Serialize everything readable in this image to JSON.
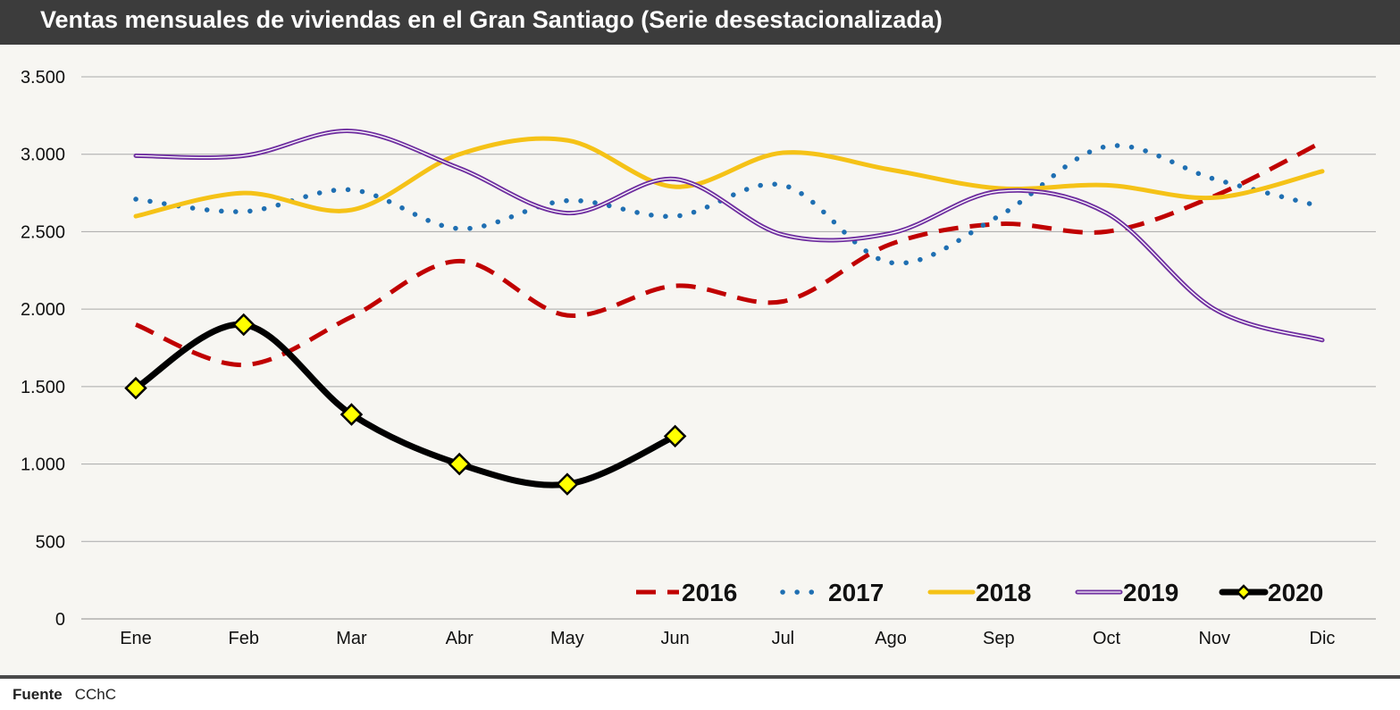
{
  "title": "Ventas mensuales de viviendas en el Gran Santiago (Serie desestacionalizada)",
  "footer": {
    "label": "Fuente",
    "source": "CChC"
  },
  "chart_data": {
    "type": "line",
    "title": "Ventas mensuales de viviendas en el Gran Santiago (Serie desestacionalizada)",
    "xlabel": "",
    "ylabel": "",
    "categories": [
      "Ene",
      "Feb",
      "Mar",
      "Abr",
      "May",
      "Jun",
      "Jul",
      "Ago",
      "Sep",
      "Oct",
      "Nov",
      "Dic"
    ],
    "ylim": [
      0,
      3500
    ],
    "yticks": [
      0,
      500,
      1000,
      1500,
      2000,
      2500,
      3000,
      3500
    ],
    "ytick_labels": [
      "0",
      "500",
      "1.000",
      "1.500",
      "2.000",
      "2.500",
      "3.000",
      "3.500"
    ],
    "grid": true,
    "legend_position": "bottom-right",
    "series": [
      {
        "name": "2016",
        "style": "dashed",
        "color": "#c00000",
        "values": [
          1900,
          1640,
          1950,
          2310,
          1960,
          2150,
          2050,
          2420,
          2550,
          2500,
          2730,
          3080
        ]
      },
      {
        "name": "2017",
        "style": "dotted",
        "color": "#1f6fb2",
        "values": [
          2710,
          2630,
          2770,
          2520,
          2700,
          2600,
          2800,
          2300,
          2600,
          3050,
          2840,
          2660
        ]
      },
      {
        "name": "2018",
        "style": "solid",
        "color": "#f5c217",
        "values": [
          2600,
          2750,
          2640,
          3000,
          3090,
          2790,
          3010,
          2900,
          2780,
          2800,
          2720,
          2890
        ]
      },
      {
        "name": "2019",
        "style": "double",
        "color": "#7030a0",
        "values": [
          2990,
          2990,
          3150,
          2910,
          2620,
          2840,
          2480,
          2490,
          2760,
          2620,
          2000,
          1800
        ]
      },
      {
        "name": "2020",
        "style": "thick-markers",
        "color": "#000000",
        "marker_color": "#ffff00",
        "values": [
          1490,
          1900,
          1320,
          1000,
          870,
          1180,
          null,
          null,
          null,
          null,
          null,
          null
        ]
      }
    ]
  }
}
